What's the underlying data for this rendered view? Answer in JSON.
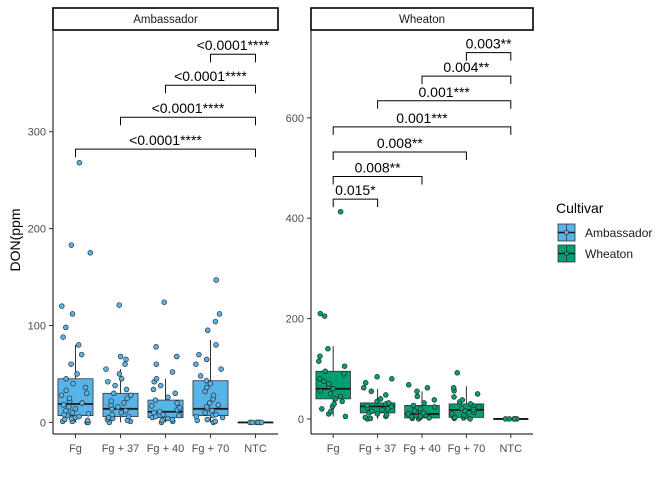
{
  "chart_data": {
    "type": "box",
    "ylabel": "DON(ppm",
    "categories": [
      "Fg",
      "Fg + 37",
      "Fg + 40",
      "Fg + 70",
      "NTC"
    ],
    "legend": {
      "title": "Cultivar",
      "position": "right",
      "entries": [
        {
          "label": "Ambassador",
          "color": "#56B4E9"
        },
        {
          "label": "Wheaton",
          "color": "#009E73"
        }
      ]
    },
    "grid": false,
    "panels": [
      {
        "strip": "Ambassador",
        "color": "#56B4E9",
        "ylim": [
          -12,
          405
        ],
        "yticks": [
          0,
          100,
          200,
          300
        ],
        "boxes": [
          {
            "category": "Fg",
            "q1": 7,
            "median": 19,
            "q3": 45,
            "whisker_low": 0,
            "whisker_high": 80,
            "points": [
              0,
              0,
              1,
              1,
              2,
              3,
              4,
              5,
              6,
              7,
              8,
              9,
              10,
              12,
              14,
              16,
              18,
              20,
              22,
              25,
              28,
              30,
              33,
              36,
              40,
              45,
              50,
              60,
              70,
              80,
              88,
              98,
              112,
              120,
              175,
              183,
              268
            ]
          },
          {
            "category": "Fg + 37",
            "q1": 6,
            "median": 14,
            "q3": 30,
            "whisker_low": 0,
            "whisker_high": 55,
            "points": [
              0,
              1,
              2,
              3,
              4,
              5,
              6,
              8,
              10,
              12,
              14,
              16,
              18,
              20,
              22,
              25,
              28,
              30,
              34,
              38,
              42,
              45,
              50,
              55,
              60,
              65,
              68,
              121
            ]
          },
          {
            "category": "Fg + 40",
            "q1": 5,
            "median": 11,
            "q3": 23,
            "whisker_low": 0,
            "whisker_high": 45,
            "points": [
              0,
              1,
              2,
              3,
              4,
              5,
              6,
              7,
              8,
              10,
              11,
              13,
              15,
              17,
              20,
              23,
              26,
              30,
              34,
              38,
              42,
              45,
              52,
              60,
              68,
              78,
              124
            ]
          },
          {
            "category": "Fg + 70",
            "q1": 7,
            "median": 14,
            "q3": 43,
            "whisker_low": 0,
            "whisker_high": 85,
            "points": [
              0,
              1,
              2,
              3,
              5,
              6,
              7,
              8,
              10,
              12,
              14,
              16,
              18,
              20,
              24,
              28,
              32,
              36,
              40,
              43,
              48,
              55,
              60,
              65,
              70,
              80,
              95,
              104,
              112,
              147
            ]
          },
          {
            "category": "NTC",
            "q1": 0,
            "median": 0,
            "q3": 0,
            "whisker_low": 0,
            "whisker_high": 0,
            "points": [
              0,
              0,
              0,
              0,
              0,
              0
            ]
          }
        ],
        "comparisons": [
          {
            "from": "Fg",
            "to": "NTC",
            "label": "<0.0001****",
            "y": 282
          },
          {
            "from": "Fg + 37",
            "to": "NTC",
            "label": "<0.0001****",
            "y": 315
          },
          {
            "from": "Fg + 40",
            "to": "NTC",
            "label": "<0.0001****",
            "y": 348
          },
          {
            "from": "Fg + 70",
            "to": "NTC",
            "label": "<0.0001****",
            "y": 380
          }
        ]
      },
      {
        "strip": "Wheaton",
        "color": "#009E73",
        "ylim": [
          -30,
          775
        ],
        "yticks": [
          0,
          200,
          400,
          600
        ],
        "boxes": [
          {
            "category": "Fg",
            "q1": 40,
            "median": 60,
            "q3": 95,
            "whisker_low": 5,
            "whisker_high": 145,
            "points": [
              5,
              10,
              15,
              20,
              25,
              30,
              35,
              40,
              45,
              50,
              55,
              60,
              65,
              70,
              75,
              80,
              90,
              95,
              105,
              115,
              125,
              140,
              205,
              210,
              413
            ]
          },
          {
            "category": "Fg + 37",
            "q1": 12,
            "median": 25,
            "q3": 32,
            "whisker_low": 0,
            "whisker_high": 60,
            "points": [
              0,
              1,
              3,
              5,
              8,
              10,
              12,
              15,
              18,
              20,
              22,
              25,
              27,
              30,
              32,
              35,
              40,
              48,
              55,
              62,
              72,
              80,
              84
            ]
          },
          {
            "category": "Fg + 40",
            "q1": 2,
            "median": 10,
            "q3": 27,
            "whisker_low": 0,
            "whisker_high": 55,
            "points": [
              0,
              1,
              2,
              3,
              4,
              6,
              8,
              10,
              12,
              14,
              16,
              20,
              24,
              27,
              32,
              38,
              45,
              55,
              62,
              68
            ]
          },
          {
            "category": "Fg + 70",
            "q1": 3,
            "median": 18,
            "q3": 30,
            "whisker_low": 0,
            "whisker_high": 65,
            "points": [
              0,
              1,
              2,
              3,
              5,
              8,
              10,
              13,
              16,
              18,
              21,
              24,
              27,
              30,
              34,
              38,
              44,
              50,
              56,
              62,
              92
            ]
          },
          {
            "category": "NTC",
            "q1": 0,
            "median": 0,
            "q3": 0,
            "whisker_low": 0,
            "whisker_high": 0,
            "points": [
              0,
              0,
              0,
              0,
              0,
              0
            ]
          }
        ],
        "comparisons": [
          {
            "from": "Fg",
            "to": "Fg + 37",
            "label": "0.015*",
            "y": 438
          },
          {
            "from": "Fg",
            "to": "Fg + 40",
            "label": "0.008**",
            "y": 483
          },
          {
            "from": "Fg",
            "to": "Fg + 70",
            "label": "0.008**",
            "y": 532
          },
          {
            "from": "Fg",
            "to": "NTC",
            "label": "0.001***",
            "y": 582
          },
          {
            "from": "Fg + 37",
            "to": "NTC",
            "label": "0.001***",
            "y": 634
          },
          {
            "from": "Fg + 40",
            "to": "NTC",
            "label": "0.004**",
            "y": 683
          },
          {
            "from": "Fg + 70",
            "to": "NTC",
            "label": "0.003**",
            "y": 730
          }
        ]
      }
    ]
  }
}
